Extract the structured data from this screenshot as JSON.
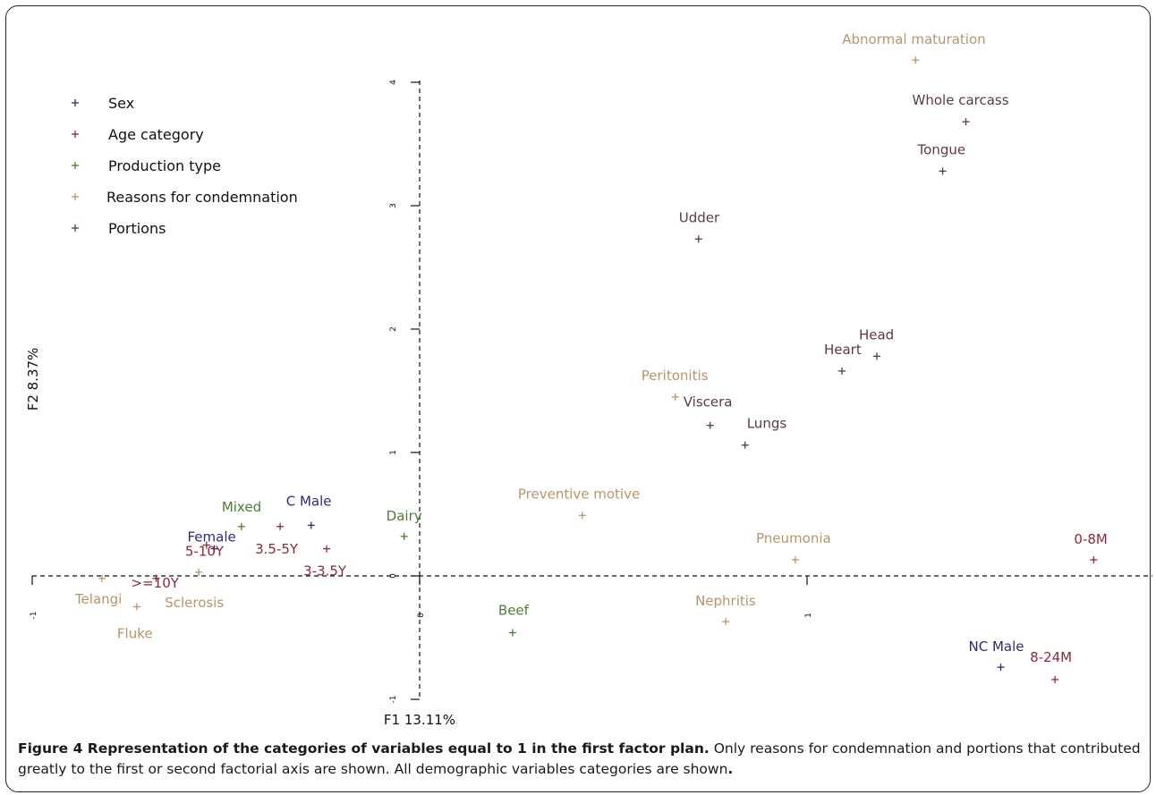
{
  "chart_data": {
    "type": "scatter",
    "xlabel": "F1 13.11%",
    "ylabel": "F2 8.37%",
    "xlim": [
      -1,
      1.85
    ],
    "ylim": [
      -1,
      4
    ],
    "x_ticks": [
      {
        "value": -1,
        "label": "-1"
      },
      {
        "value": 0,
        "label": "0"
      },
      {
        "value": 1,
        "label": "1"
      }
    ],
    "y_ticks": [
      {
        "value": -1,
        "label": "-1"
      },
      {
        "value": 0,
        "label": "0"
      },
      {
        "value": 1,
        "label": "1"
      },
      {
        "value": 2,
        "label": "2"
      },
      {
        "value": 3,
        "label": "3"
      },
      {
        "value": 4,
        "label": "4"
      }
    ],
    "grid": false,
    "legend_placement": "top-left",
    "series": [
      {
        "name": "Sex",
        "color": "#2b2b7a",
        "points": [
          {
            "label": "Female",
            "x": -0.53,
            "y": 0.22
          },
          {
            "label": "C Male",
            "x": -0.28,
            "y": 0.41
          },
          {
            "label": "NC Male",
            "x": 1.5,
            "y": -0.74
          }
        ]
      },
      {
        "name": "Age category",
        "color": "#8b2a3a",
        "points": [
          {
            "label": ">=10Y",
            "x": -0.68,
            "y": -0.02
          },
          {
            "label": "5-10Y",
            "x": -0.55,
            "y": 0.25
          },
          {
            "label": "3.5-5Y",
            "x": -0.36,
            "y": 0.4
          },
          {
            "label": "3-3.5Y",
            "x": -0.24,
            "y": 0.22
          },
          {
            "label": "0-8M",
            "x": 1.74,
            "y": 0.13
          },
          {
            "label": "8-24M",
            "x": 1.64,
            "y": -0.84
          }
        ]
      },
      {
        "name": "Production type",
        "color": "#4f7a35",
        "points": [
          {
            "label": "Mixed",
            "x": -0.46,
            "y": 0.4
          },
          {
            "label": "Dairy",
            "x": -0.04,
            "y": 0.32
          },
          {
            "label": "Beef",
            "x": 0.24,
            "y": -0.46
          }
        ]
      },
      {
        "name": "Reasons for condemnation",
        "color": "#b8956a",
        "points": [
          {
            "label": "Telangi",
            "x": -0.82,
            "y": -0.02
          },
          {
            "label": "Fluke",
            "x": -0.73,
            "y": -0.25
          },
          {
            "label": "Sclerosis",
            "x": -0.57,
            "y": 0.03
          },
          {
            "label": "Preventive motive",
            "x": 0.42,
            "y": 0.49
          },
          {
            "label": "Peritonitis",
            "x": 0.66,
            "y": 1.45
          },
          {
            "label": "Pneumonia",
            "x": 0.97,
            "y": 0.13
          },
          {
            "label": "Nephritis",
            "x": 0.79,
            "y": -0.37
          },
          {
            "label": "Abnormal maturation",
            "x": 1.28,
            "y": 4.18
          }
        ]
      },
      {
        "name": "Portions",
        "color": "#5a3a4a",
        "points": [
          {
            "label": "Udder",
            "x": 0.72,
            "y": 2.73
          },
          {
            "label": "Viscera",
            "x": 0.75,
            "y": 1.22
          },
          {
            "label": "Lungs",
            "x": 0.84,
            "y": 1.06
          },
          {
            "label": "Heart",
            "x": 1.09,
            "y": 1.66
          },
          {
            "label": "Head",
            "x": 1.18,
            "y": 1.78
          },
          {
            "label": "Tongue",
            "x": 1.35,
            "y": 3.28
          },
          {
            "label": "Whole carcass",
            "x": 1.41,
            "y": 3.68
          }
        ]
      }
    ]
  },
  "caption": {
    "title": "Figure 4 Representation of the categories of variables equal to 1 in the first factor plan.",
    "text": " Only reasons for condemnation and portions that contributed greatly to the first or second factorial axis are shown. All demographic variables categories are shown",
    "end": "."
  }
}
